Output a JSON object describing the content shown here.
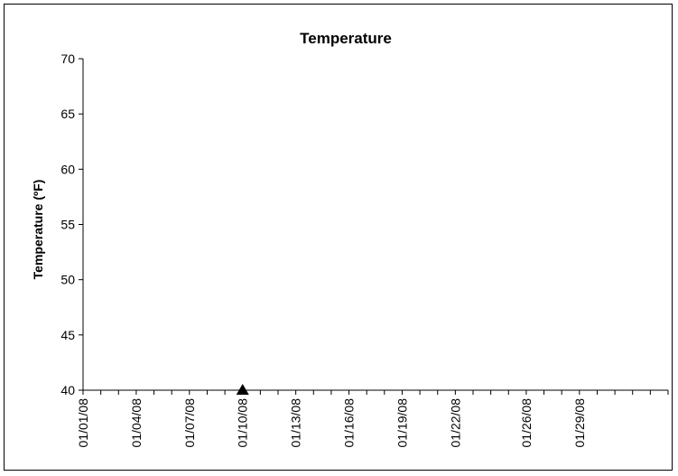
{
  "chart_data": {
    "type": "scatter",
    "title": "Temperature",
    "xlabel": "",
    "ylabel": "Temperature (ºF)",
    "y_ticks": [
      "70",
      "65",
      "60",
      "55",
      "50",
      "45",
      "40"
    ],
    "ylim": [
      40,
      70
    ],
    "x_ticks": [
      "01/01/08",
      "01/04/08",
      "01/07/08",
      "01/10/08",
      "01/13/08",
      "01/16/08",
      "01/19/08",
      "01/22/08",
      "01/26/08",
      "01/29/08"
    ],
    "grid": false,
    "series": [
      {
        "marker": "triangle",
        "color": "#000000",
        "points": [
          {
            "x": "01/10/08",
            "y": 40
          }
        ]
      }
    ]
  }
}
